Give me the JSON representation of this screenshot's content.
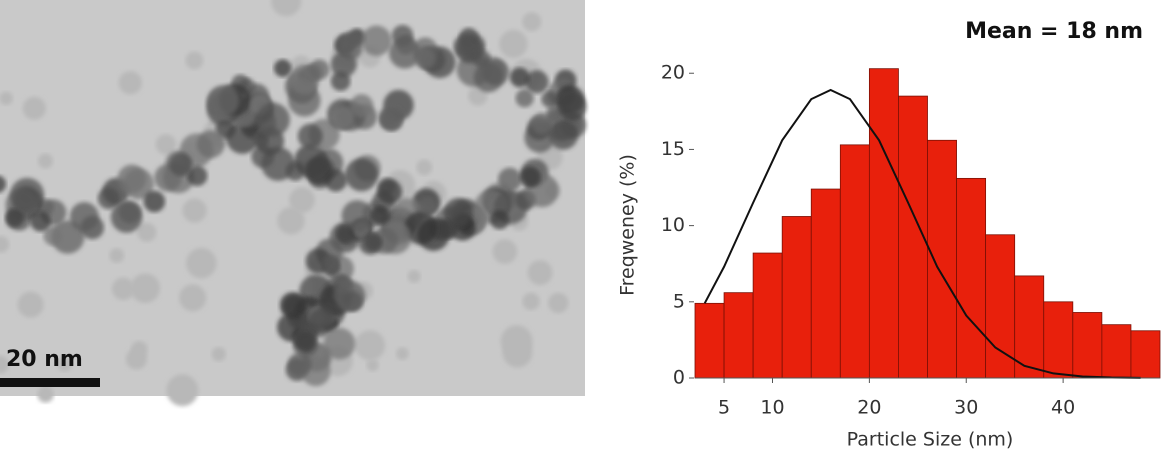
{
  "image": {
    "scale_bar": "20 nm"
  },
  "chart_data": {
    "type": "histogram",
    "title": "Mean = 18 nm",
    "x_label": "Particle Size (nm)",
    "y_label": "Freqweney (%)",
    "bins": [
      2,
      5,
      8,
      11,
      14,
      17,
      20,
      23,
      26,
      29,
      32,
      35,
      38,
      41,
      44,
      47,
      50
    ],
    "values": [
      4.9,
      5.6,
      8.2,
      10.6,
      12.4,
      15.3,
      20.3,
      18.5,
      15.6,
      13.1,
      9.4,
      6.7,
      5.0,
      4.3,
      3.5,
      3.1
    ],
    "color": "#e8200c",
    "fit": {
      "x": [
        3,
        5,
        8,
        11,
        14,
        16,
        18,
        21,
        24,
        27,
        30,
        33,
        36,
        39,
        42,
        45,
        48
      ],
      "values": [
        4.9,
        7.3,
        11.5,
        15.6,
        18.3,
        18.9,
        18.3,
        15.6,
        11.5,
        7.3,
        4.1,
        2.0,
        0.8,
        0.3,
        0.1,
        0.03,
        0.006
      ],
      "color": "#111111"
    },
    "xlim": [
      2,
      50
    ],
    "xticks": [
      5,
      10,
      20,
      30,
      40
    ],
    "ylim": [
      0,
      21
    ],
    "yticks": [
      0,
      5,
      10,
      15,
      20
    ]
  }
}
